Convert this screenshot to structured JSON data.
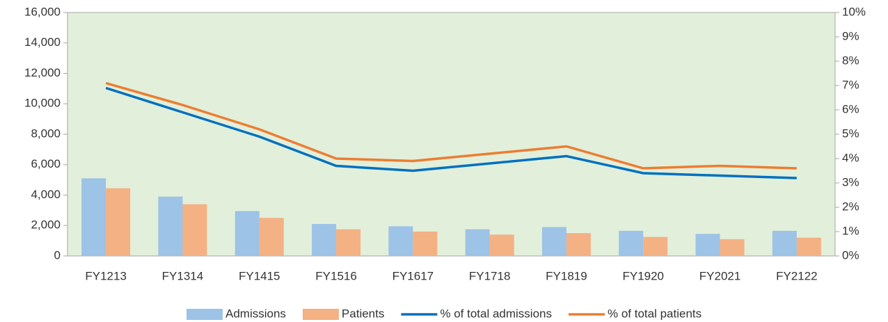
{
  "chart_data": {
    "type": "bar_line",
    "categories": [
      "FY1213",
      "FY1314",
      "FY1415",
      "FY1516",
      "FY1617",
      "FY1718",
      "FY1819",
      "FY1920",
      "FY2021",
      "FY2122"
    ],
    "series": [
      {
        "name": "Admissions",
        "type": "bar",
        "color": "#9dc3e6",
        "values": [
          5100,
          3900,
          2950,
          2100,
          1950,
          1750,
          1900,
          1650,
          1450,
          1650
        ]
      },
      {
        "name": "Patients",
        "type": "bar",
        "color": "#f4b183",
        "values": [
          4450,
          3400,
          2500,
          1750,
          1600,
          1400,
          1500,
          1250,
          1100,
          1200
        ]
      },
      {
        "name": "% of total admissions",
        "type": "line",
        "axis": "y2",
        "color": "#0070c0",
        "values": [
          6.9,
          5.9,
          4.9,
          3.7,
          3.5,
          3.8,
          4.1,
          3.4,
          3.3,
          3.2
        ]
      },
      {
        "name": "% of total patients",
        "type": "line",
        "axis": "y2",
        "color": "#ed7d31",
        "values": [
          7.1,
          6.2,
          5.2,
          4.0,
          3.9,
          4.2,
          4.5,
          3.6,
          3.7,
          3.6
        ]
      }
    ],
    "ylim": [
      0,
      16000
    ],
    "yticks": [
      0,
      {
        "value": 2000,
        "label": "2,000"
      },
      {
        "value": 4000,
        "label": "4,000"
      },
      {
        "value": 6000,
        "label": "6,000"
      },
      {
        "value": 8000,
        "label": "8,000"
      },
      {
        "value": 10000,
        "label": "10,000"
      },
      {
        "value": 12000,
        "label": "12,000"
      },
      {
        "value": 14000,
        "label": "14,000"
      },
      {
        "value": 16000,
        "label": "16,000"
      }
    ],
    "y2lim": [
      0,
      10
    ],
    "y2ticks": [
      {
        "value": 0,
        "label": "0%"
      },
      {
        "value": 1,
        "label": "1%"
      },
      {
        "value": 2,
        "label": "2%"
      },
      {
        "value": 3,
        "label": "3%"
      },
      {
        "value": 4,
        "label": "4%"
      },
      {
        "value": 5,
        "label": "5%"
      },
      {
        "value": 6,
        "label": "6%"
      },
      {
        "value": 7,
        "label": "7%"
      },
      {
        "value": 8,
        "label": "8%"
      },
      {
        "value": 9,
        "label": "9%"
      },
      {
        "value": 10,
        "label": "10%"
      }
    ],
    "plot_background": "#e2efda",
    "legend": "bottom"
  }
}
